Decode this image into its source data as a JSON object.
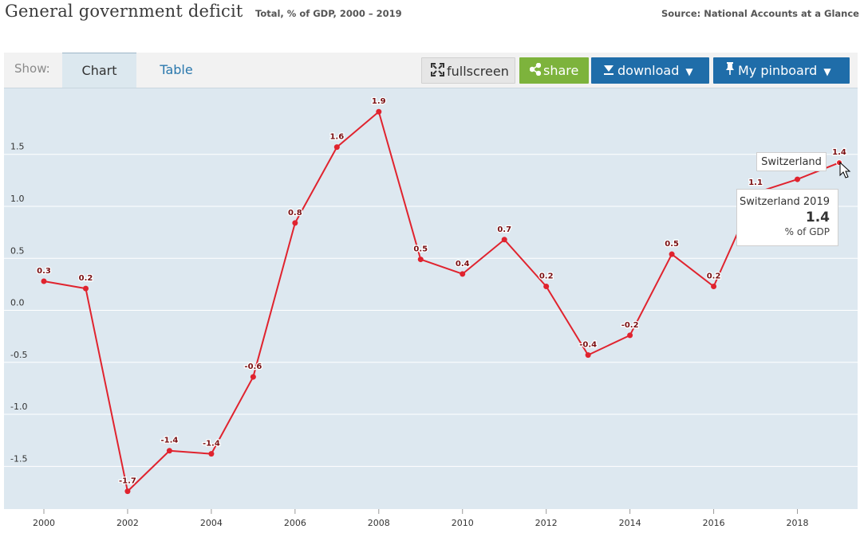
{
  "header": {
    "title": "General government deficit",
    "subtitle": "Total, % of GDP, 2000 – 2019",
    "source": "Source: National Accounts at a Glance"
  },
  "toolbar": {
    "show_label": "Show:",
    "tabs": [
      {
        "label": "Chart",
        "active": true
      },
      {
        "label": "Table",
        "active": false
      }
    ],
    "fullscreen_label": "fullscreen",
    "share_label": "share",
    "download_label": "download",
    "pinboard_label": "My pinboard"
  },
  "colors": {
    "series": "#e0232e",
    "plot_bg": "#dde8f0",
    "share": "#7db33c",
    "primary": "#1f6da9"
  },
  "chart_data": {
    "type": "line",
    "title": "General government deficit",
    "subtitle": "Total, % of GDP, 2000 – 2019",
    "xlabel": "",
    "ylabel": "",
    "xlim": [
      2000,
      2019
    ],
    "ylim": [
      -1.85,
      1.95
    ],
    "x_ticks": [
      "2000",
      "2002",
      "2004",
      "2006",
      "2008",
      "2010",
      "2012",
      "2014",
      "2016",
      "2018"
    ],
    "y_ticks": [
      "1.5",
      "1.0",
      "0.5",
      "0.0",
      "-0.5",
      "-1.0",
      "-1.5"
    ],
    "grid": true,
    "legend": "none",
    "series": [
      {
        "name": "Switzerland",
        "x": [
          2000,
          2001,
          2002,
          2003,
          2004,
          2005,
          2006,
          2007,
          2008,
          2009,
          2010,
          2011,
          2012,
          2013,
          2014,
          2015,
          2016,
          2017,
          2018,
          2019
        ],
        "values": [
          0.28,
          0.21,
          -1.74,
          -1.35,
          -1.38,
          -0.64,
          0.84,
          1.57,
          1.91,
          0.49,
          0.35,
          0.68,
          0.23,
          -0.43,
          -0.24,
          0.54,
          0.23,
          1.13,
          1.26,
          1.42
        ],
        "labels": [
          "0.3",
          "0.2",
          "-1.7",
          "-1.4",
          "-1.4",
          "-0.6",
          "0.8",
          "1.6",
          "1.9",
          "0.5",
          "0.4",
          "0.7",
          "0.2",
          "-0.4",
          "-0.2",
          "0.5",
          "0.2",
          "1.1",
          "",
          "1.4"
        ]
      }
    ]
  },
  "tooltip": {
    "series_label": "Switzerland",
    "title": "Switzerland 2019",
    "value": "1.4",
    "unit": "% of GDP"
  }
}
